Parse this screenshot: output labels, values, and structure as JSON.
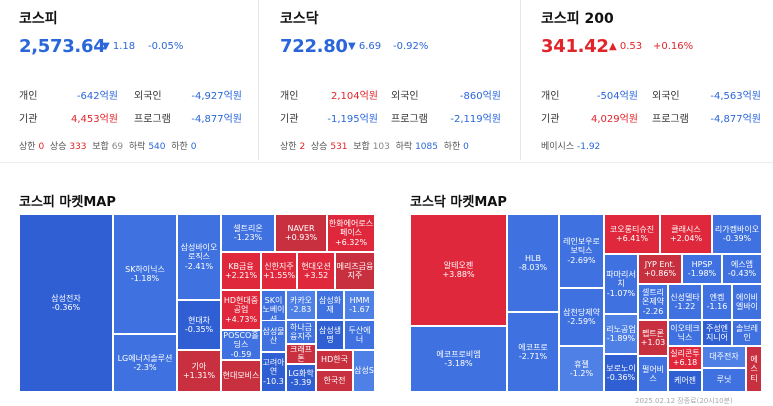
{
  "kospi": {
    "title": "코스피",
    "price": "2,573.64",
    "arrow": "▼",
    "change": "1.18",
    "rate": "-0.05%",
    "individual_label": "개인",
    "individual": "-642억원",
    "foreign_label": "외국인",
    "foreign": "-4,927억원",
    "institution_label": "기관",
    "institution": "4,453억원",
    "program_label": "프로그램",
    "program": "-4,877억원",
    "limit_up_label": "상한",
    "limit_up": "0",
    "rise_label": "상승",
    "rise": "333",
    "flat_label": "보합",
    "flat": "69",
    "fall_label": "하락",
    "fall": "540",
    "limit_down_label": "하한",
    "limit_down": "0"
  },
  "kosdaq": {
    "title": "코스닥",
    "price": "722.80",
    "arrow": "▼",
    "change": "6.69",
    "rate": "-0.92%",
    "individual_label": "개인",
    "individual": "2,104억원",
    "foreign_label": "외국인",
    "foreign": "-860억원",
    "institution_label": "기관",
    "institution": "-1,195억원",
    "program_label": "프로그램",
    "program": "-2,119억원",
    "limit_up_label": "상한",
    "limit_up": "2",
    "rise_label": "상승",
    "rise": "531",
    "flat_label": "보합",
    "flat": "103",
    "fall_label": "하락",
    "fall": "1085",
    "limit_down_label": "하한",
    "limit_down": "0"
  },
  "kospi200": {
    "title": "코스피 200",
    "price": "341.42",
    "arrow": "▲",
    "change": "0.53",
    "rate": "+0.16%",
    "individual_label": "개인",
    "individual": "-504억원",
    "foreign_label": "외국인",
    "foreign": "-4,563억원",
    "institution_label": "기관",
    "institution": "4,029억원",
    "program_label": "프로그램",
    "program": "-4,877억원",
    "basis_label": "베이시스",
    "basis": "-1.92"
  },
  "kospi_map": {
    "title": "코스피 마켓MAP",
    "cells": [
      {
        "n": "삼성전자",
        "v": "-0.36%"
      },
      {
        "n": "SK하이닉스",
        "v": "-1.18%"
      },
      {
        "n": "LG에너지솔루션",
        "v": "-2.3%"
      },
      {
        "n": "삼성바이오로직스",
        "v": "-2.41%"
      },
      {
        "n": "현대차",
        "v": "-0.35%"
      },
      {
        "n": "기아",
        "v": "+1.31%"
      },
      {
        "n": "셀트리온",
        "v": "-1.23%"
      },
      {
        "n": "NAVER",
        "v": "+0.93%"
      },
      {
        "n": "한화에어로스페이스",
        "v": "+6.32%"
      },
      {
        "n": "KB금융",
        "v": "+2.21%"
      },
      {
        "n": "신한지주",
        "v": "+1.55%"
      },
      {
        "n": "현대오션",
        "v": "+3.52"
      },
      {
        "n": "메리츠금융지주",
        "v": ""
      },
      {
        "n": "HD현대중공업",
        "v": "+4.73%"
      },
      {
        "n": "SK이노베이션",
        "v": ""
      },
      {
        "n": "카카오",
        "v": "-2.83"
      },
      {
        "n": "삼성화재",
        "v": ""
      },
      {
        "n": "HMM",
        "v": "-1.67"
      },
      {
        "n": "POSCO홀딩스",
        "v": "-0.59"
      },
      {
        "n": "삼성물산",
        "v": ""
      },
      {
        "n": "하나금융지주",
        "v": ""
      },
      {
        "n": "삼성생명",
        "v": ""
      },
      {
        "n": "두산에너",
        "v": ""
      },
      {
        "n": "현대모비스",
        "v": ""
      },
      {
        "n": "고려아연",
        "v": "-10.3"
      },
      {
        "n": "크래프톤",
        "v": ""
      },
      {
        "n": "LG화학",
        "v": "-3.39"
      },
      {
        "n": "HD한국",
        "v": ""
      },
      {
        "n": "한국전",
        "v": ""
      },
      {
        "n": "삼성S",
        "v": ""
      }
    ]
  },
  "kosdaq_map": {
    "title": "코스닥 마켓MAP",
    "cells": [
      {
        "n": "알테오젠",
        "v": "+3.88%"
      },
      {
        "n": "에코프로비엠",
        "v": "-3.18%"
      },
      {
        "n": "HLB",
        "v": "-8.03%"
      },
      {
        "n": "에코프로",
        "v": "-2.71%"
      },
      {
        "n": "레인보우로보틱스",
        "v": "-2.69%"
      },
      {
        "n": "삼천당제약",
        "v": "-2.59%"
      },
      {
        "n": "휴젤",
        "v": "-1.2%"
      },
      {
        "n": "코오롱티슈진",
        "v": "+6.41%"
      },
      {
        "n": "클래시스",
        "v": "+2.04%"
      },
      {
        "n": "리가켐바이오",
        "v": "-0.39%"
      },
      {
        "n": "파마리서치",
        "v": "-1.07%"
      },
      {
        "n": "JYP Ent.",
        "v": "+0.86%"
      },
      {
        "n": "HPSP",
        "v": "-1.98%"
      },
      {
        "n": "에스엠",
        "v": "-0.43%"
      },
      {
        "n": "셀트리온제약",
        "v": "-2.26"
      },
      {
        "n": "신성델타",
        "v": "-1.22"
      },
      {
        "n": "엔켐",
        "v": "-1.16"
      },
      {
        "n": "에이비엘바이",
        "v": ""
      },
      {
        "n": "리노공업",
        "v": "-1.89%"
      },
      {
        "n": "펩트론",
        "v": "+1.03"
      },
      {
        "n": "이오테크닉스",
        "v": ""
      },
      {
        "n": "주성엔지니어",
        "v": ""
      },
      {
        "n": "솔브레인",
        "v": ""
      },
      {
        "n": "보로노이",
        "v": "-0.36%"
      },
      {
        "n": "실리콘투",
        "v": "+6.18"
      },
      {
        "n": "대주전자",
        "v": ""
      },
      {
        "n": "펄어비스",
        "v": ""
      },
      {
        "n": "케어젠",
        "v": ""
      },
      {
        "n": "루닛",
        "v": ""
      },
      {
        "n": "에스티",
        "v": ""
      }
    ]
  },
  "footer": "2025.02.12 장종료(20시10분)"
}
